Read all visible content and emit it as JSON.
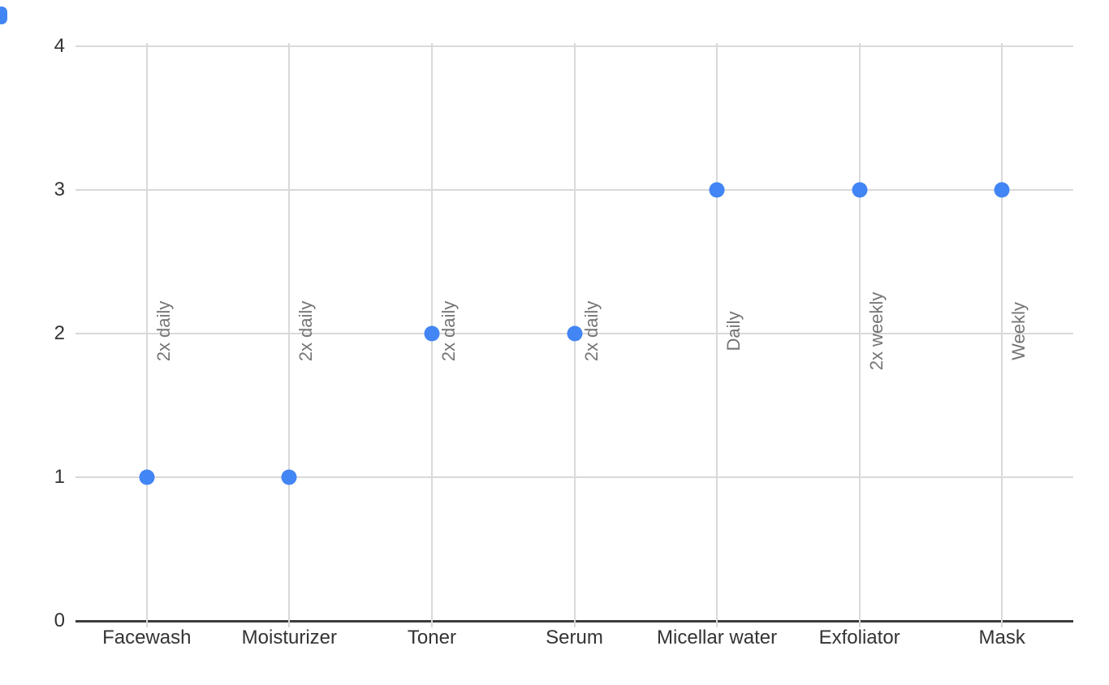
{
  "chart_data": {
    "type": "scatter",
    "title": "",
    "xlabel": "",
    "ylabel": "",
    "categories": [
      "Facewash",
      "Moisturizer",
      "Toner",
      "Serum",
      "Micellar water",
      "Exfoliator",
      "Mask"
    ],
    "series": [
      {
        "values": [
          1,
          1,
          2,
          2,
          3,
          3,
          3
        ],
        "point_labels": [
          "2x daily",
          "2x daily",
          "2x daily",
          "2x daily",
          "Daily",
          "2x weekly",
          "Weekly"
        ],
        "color": "#4285f4"
      }
    ],
    "ylim": [
      0,
      4
    ],
    "yticks": [
      0,
      1,
      2,
      3,
      4
    ],
    "grid": true,
    "legend": "none",
    "colors": {
      "point": "#4285f4",
      "gridline": "#d9d9d9",
      "axis_line": "#3c3c3c",
      "tick_label": "#333333",
      "data_label": "#757575",
      "background": "#ffffff",
      "corner_marker": "#4285f4"
    }
  }
}
